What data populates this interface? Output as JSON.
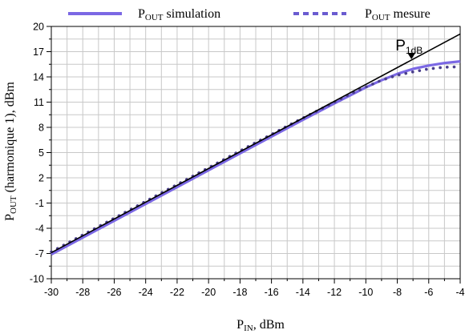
{
  "chart_data": {
    "type": "line",
    "title": "",
    "xlabel": {
      "main": "P",
      "sub": "IN",
      "rest": ", dBm"
    },
    "ylabel": {
      "main": "P",
      "sub": "OUT",
      "rest": " (harmonique 1), dBm"
    },
    "xlim": [
      -30,
      -4
    ],
    "ylim": [
      -10,
      20
    ],
    "grid": true,
    "legend_placement": "top",
    "x_ticks": [
      -30,
      -28,
      -26,
      -24,
      -22,
      -20,
      -18,
      -16,
      -14,
      -12,
      -10,
      -8,
      -6,
      -4
    ],
    "y_ticks": [
      -10,
      -7,
      -4,
      -1,
      2,
      5,
      8,
      11,
      14,
      17,
      20
    ],
    "series": [
      {
        "name": {
          "main": "P",
          "sub": "OUT",
          "rest": " simulation"
        },
        "style": "solid",
        "color": "#7b68e4",
        "x": [
          -30,
          -26,
          -22,
          -18,
          -14,
          -12,
          -10,
          -9,
          -8,
          -7,
          -6,
          -5,
          -4
        ],
        "y": [
          -7.1,
          -3.1,
          0.9,
          4.9,
          8.9,
          10.85,
          12.75,
          13.6,
          14.35,
          14.95,
          15.35,
          15.65,
          15.85
        ]
      },
      {
        "name": {
          "main": "P",
          "sub": "OUT",
          "rest": " mesure"
        },
        "style": "dotted",
        "color": "#4a3f8c",
        "x": [
          -30,
          -29,
          -28,
          -27,
          -26,
          -25,
          -24,
          -23,
          -22,
          -21,
          -20,
          -19,
          -18,
          -17,
          -16,
          -15,
          -14,
          -13,
          -12,
          -11,
          -10,
          -9,
          -8,
          -7,
          -6,
          -5,
          -4
        ],
        "y": [
          -6.8,
          -5.8,
          -4.8,
          -3.8,
          -2.8,
          -1.8,
          -0.8,
          0.2,
          1.2,
          2.2,
          3.2,
          4.2,
          5.2,
          6.2,
          7.15,
          8.15,
          9.1,
          10.05,
          11.0,
          11.95,
          12.8,
          13.6,
          14.2,
          14.6,
          14.95,
          15.15,
          15.2
        ]
      },
      {
        "name": "",
        "style": "reference",
        "color": "#000000",
        "x": [
          -30,
          -4
        ],
        "y": [
          -6.9,
          19.1
        ]
      }
    ],
    "annotations": [
      {
        "label_main": "P",
        "label_sub": "1dB",
        "x": -7.1,
        "y": 16.1
      }
    ]
  }
}
